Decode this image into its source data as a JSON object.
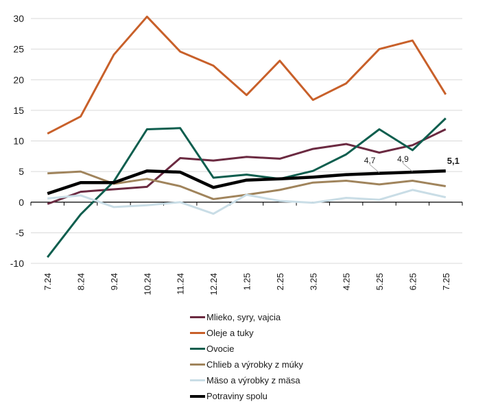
{
  "chart_data": {
    "type": "line",
    "title": "",
    "xlabel": "",
    "ylabel": "",
    "ylim": [
      -10,
      30
    ],
    "yticks": [
      30,
      25,
      20,
      15,
      10,
      5,
      0,
      -5,
      -10
    ],
    "ytick_labels": [
      "30",
      "25",
      "20",
      "15",
      "10",
      "5",
      "0",
      "-5",
      "-10"
    ],
    "grid": "horizontal",
    "legend_position": "bottom",
    "categories": [
      "7.24",
      "8.24",
      "9.24",
      "10.24",
      "11.24",
      "12.24",
      "1.25",
      "2.25",
      "3.25",
      "4.25",
      "5.25",
      "6.25",
      "7.25"
    ],
    "series": [
      {
        "name": "Mlieko, syry, vajcia",
        "color": "#6b2a41",
        "values": [
          -0.3,
          1.7,
          2.1,
          2.5,
          7.2,
          6.8,
          7.4,
          7.1,
          8.7,
          9.5,
          8.1,
          9.3,
          11.9
        ]
      },
      {
        "name": "Oleje a tuky",
        "color": "#c8602a",
        "values": [
          11.2,
          14.0,
          24.1,
          30.3,
          24.6,
          22.3,
          17.5,
          23.1,
          16.7,
          19.4,
          25.0,
          26.4,
          17.6
        ]
      },
      {
        "name": "Ovocie",
        "color": "#0e5e4e",
        "values": [
          -9.0,
          -2.0,
          3.4,
          11.9,
          12.1,
          4.0,
          4.5,
          3.8,
          5.1,
          7.8,
          11.9,
          8.5,
          13.7
        ]
      },
      {
        "name": "Chlieb a výrobky z múky",
        "color": "#a0845c",
        "values": [
          4.7,
          5.0,
          3.0,
          3.8,
          2.6,
          0.5,
          1.2,
          2.0,
          3.2,
          3.5,
          2.9,
          3.5,
          2.6
        ]
      },
      {
        "name": "Mäso a výrobky z mäsa",
        "color": "#c9dde6",
        "values": [
          0.6,
          1.1,
          -0.8,
          -0.5,
          0.0,
          -1.9,
          1.2,
          0.2,
          -0.1,
          0.7,
          0.4,
          2.0,
          0.8
        ]
      },
      {
        "name": "Potraviny spolu",
        "color": "#000000",
        "values": [
          1.4,
          3.2,
          3.2,
          5.1,
          4.9,
          2.4,
          3.6,
          3.8,
          4.1,
          4.5,
          4.7,
          4.9,
          5.1
        ],
        "bold": true
      }
    ],
    "annotations": [
      {
        "series": "Potraviny spolu",
        "category": "5.25",
        "text": "4,7",
        "bold": false
      },
      {
        "series": "Potraviny spolu",
        "category": "6.25",
        "text": "4,9",
        "bold": false
      },
      {
        "series": "Potraviny spolu",
        "category": "7.25",
        "text": "5,1",
        "bold": true
      }
    ]
  }
}
